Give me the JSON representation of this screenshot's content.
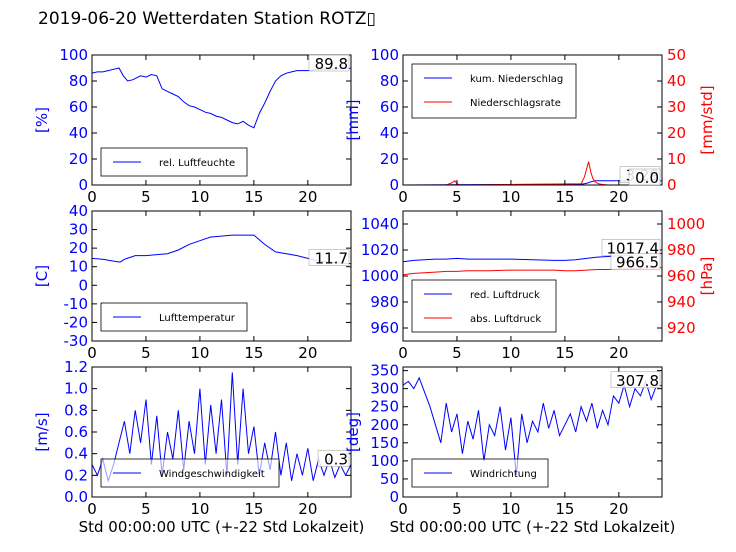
{
  "title": "2019-06-20 Wetterdaten Station ROTZ",
  "title_suffix": "▯",
  "colors": {
    "left": "#0000ff",
    "right": "#ff0000",
    "text": "#000000",
    "box_edge": "#000000"
  },
  "x_axis": {
    "ticks": [
      0,
      5,
      10,
      15,
      20
    ],
    "lim": [
      0,
      24
    ],
    "label": "Std 00:00:00 UTC (+-22 Std Lokalzeit)"
  },
  "chart_data": [
    {
      "type": "line",
      "id": "humidity",
      "ylabel": "[%]",
      "ylim": [
        0,
        100
      ],
      "yticks": [
        0,
        20,
        40,
        60,
        80,
        100
      ],
      "last_value": "89.8",
      "legend": [
        "rel. Luftfeuchte"
      ],
      "series": [
        {
          "name": "rel. Luftfeuchte",
          "color": "#0000ff",
          "x": [
            0,
            0.5,
            1,
            1.5,
            2,
            2.5,
            2.9,
            3.3,
            3.8,
            4.5,
            5,
            5.5,
            6,
            6.5,
            7,
            7.5,
            8,
            8.5,
            9,
            9.5,
            10,
            10.5,
            11,
            11.5,
            12,
            12.5,
            13,
            13.5,
            14,
            14.5,
            15,
            15.5,
            16,
            16.5,
            17,
            17.5,
            18,
            18.5,
            19,
            20,
            21,
            22,
            23,
            24
          ],
          "y": [
            86,
            87,
            87,
            88,
            89,
            90,
            84,
            80,
            81,
            84,
            83,
            85,
            84,
            74,
            72,
            70,
            68,
            64,
            61,
            60,
            58,
            56,
            55,
            53,
            52,
            50,
            48,
            47,
            49,
            46,
            44,
            55,
            63,
            72,
            80,
            84,
            86,
            87,
            88,
            88,
            89,
            89,
            89.5,
            89.8
          ]
        }
      ]
    },
    {
      "type": "line",
      "id": "precipitation",
      "ylabel": "[mm]",
      "ylim": [
        0,
        100
      ],
      "yticks": [
        0,
        20,
        40,
        60,
        80,
        100
      ],
      "ylabel_right": "[mm/std]",
      "ylim_right": [
        0,
        50
      ],
      "yticks_right": [
        0,
        10,
        20,
        30,
        40,
        50
      ],
      "last_values": [
        "3.29",
        "0.0"
      ],
      "legend": [
        "kum. Niederschlag",
        "Niederschlagsrate"
      ],
      "series": [
        {
          "name": "kum. Niederschlag",
          "color": "#0000ff",
          "axis": "left",
          "x": [
            0,
            4,
            16.5,
            17,
            17.4,
            17.8,
            18.5,
            20,
            22,
            24
          ],
          "y": [
            0,
            0.2,
            0.5,
            1.2,
            2.5,
            3.2,
            3.29,
            3.29,
            3.29,
            3.29
          ]
        },
        {
          "name": "Niederschlagsrate",
          "color": "#ff0000",
          "axis": "right",
          "x": [
            0,
            4,
            4.5,
            4.8,
            5,
            5.3,
            6,
            16.5,
            16.8,
            17,
            17.2,
            17.4,
            17.6,
            17.8,
            18.1,
            18.5,
            19,
            24
          ],
          "y": [
            0,
            0,
            0.8,
            1.6,
            0.5,
            0,
            0,
            0.5,
            3,
            6,
            9,
            5,
            2.5,
            1.2,
            0.5,
            0.2,
            0,
            0
          ]
        }
      ]
    },
    {
      "type": "line",
      "id": "temperature",
      "ylabel": "[C]",
      "ylim": [
        -30,
        40
      ],
      "yticks": [
        -30,
        -20,
        -10,
        0,
        10,
        20,
        30,
        40
      ],
      "last_value": "11.7",
      "legend": [
        "Lufttemperatur"
      ],
      "series": [
        {
          "name": "Lufttemperatur",
          "color": "#0000ff",
          "x": [
            0,
            1,
            2,
            2.6,
            3,
            4,
            5,
            6,
            7,
            8,
            9,
            10,
            11,
            12,
            13,
            14,
            15,
            16,
            17,
            18,
            19,
            20,
            21,
            22,
            23,
            24
          ],
          "y": [
            14.5,
            14,
            13,
            12.5,
            14,
            16,
            16,
            16.5,
            17,
            19,
            22,
            24,
            26,
            26.5,
            27,
            27,
            27,
            22,
            18,
            17,
            16,
            14.5,
            13,
            12.5,
            12,
            11.7
          ]
        }
      ]
    },
    {
      "type": "line",
      "id": "pressure",
      "ylim": [
        950,
        1050
      ],
      "yticks": [
        960,
        980,
        1000,
        1020,
        1040
      ],
      "ylabel_right": "[hPa]",
      "ylim_right": [
        910,
        1010
      ],
      "yticks_right": [
        920,
        940,
        960,
        980,
        1000
      ],
      "last_values": [
        "1017.4",
        "966.5"
      ],
      "legend": [
        "red. Luftdruck",
        "abs. Luftdruck"
      ],
      "series": [
        {
          "name": "red. Luftdruck",
          "color": "#0000ff",
          "axis": "left",
          "x": [
            0,
            1,
            2,
            3,
            4,
            5,
            6,
            8,
            10,
            12,
            14,
            15,
            16,
            17,
            18,
            19,
            20,
            21,
            22,
            23,
            24
          ],
          "y": [
            1011,
            1012,
            1012.5,
            1013,
            1013,
            1013.5,
            1013,
            1013,
            1013,
            1012.5,
            1012,
            1012,
            1012.5,
            1013.5,
            1014.5,
            1015,
            1015.5,
            1016,
            1016.5,
            1017,
            1017.4
          ]
        },
        {
          "name": "abs. Luftdruck",
          "color": "#ff0000",
          "axis": "right",
          "x": [
            0,
            1,
            2,
            3,
            4,
            5,
            6,
            8,
            10,
            12,
            14,
            15,
            16,
            17,
            18,
            19,
            20,
            21,
            22,
            23,
            24
          ],
          "y": [
            961,
            962,
            962.5,
            963,
            963.5,
            963.5,
            964,
            964,
            964.5,
            964.5,
            964.5,
            964,
            964,
            964.5,
            965,
            965,
            965.5,
            966,
            966,
            966.5,
            966.5
          ]
        }
      ]
    },
    {
      "type": "line",
      "id": "wind_speed",
      "ylabel": "[m/s]",
      "ylim": [
        0,
        1.2
      ],
      "yticks": [
        0.0,
        0.2,
        0.4,
        0.6,
        0.8,
        1.0,
        1.2
      ],
      "last_value": "0.3",
      "legend": [
        "Windgeschwindigkeit"
      ],
      "series": [
        {
          "name": "Windgeschwindigkeit",
          "color": "#0000ff",
          "x": [
            0,
            0.5,
            1,
            1.5,
            2,
            2.5,
            3,
            3.5,
            4,
            4.5,
            5,
            5.5,
            6,
            6.5,
            7,
            7.5,
            8,
            8.5,
            9,
            9.5,
            10,
            10.5,
            11,
            11.5,
            12,
            12.5,
            13,
            13.5,
            14,
            14.5,
            15,
            15.5,
            16,
            16.5,
            17,
            17.5,
            18,
            18.5,
            19,
            19.5,
            20,
            20.5,
            21,
            21.5,
            22,
            22.5,
            23,
            23.5,
            24
          ],
          "y": [
            0.3,
            0.2,
            0.35,
            0.15,
            0.3,
            0.5,
            0.7,
            0.4,
            0.8,
            0.5,
            0.9,
            0.3,
            0.75,
            0.2,
            0.6,
            0.35,
            0.8,
            0.25,
            0.7,
            0.4,
            1.0,
            0.3,
            0.85,
            0.4,
            0.9,
            0.2,
            1.15,
            0.3,
            1.0,
            0.4,
            0.65,
            0.2,
            0.5,
            0.25,
            0.6,
            0.2,
            0.5,
            0.15,
            0.4,
            0.2,
            0.45,
            0.15,
            0.35,
            0.2,
            0.35,
            0.18,
            0.3,
            0.2,
            0.3
          ]
        }
      ]
    },
    {
      "type": "line",
      "id": "wind_direction",
      "ylabel": "[deg]",
      "ylim": [
        0,
        360
      ],
      "yticks": [
        0,
        50,
        100,
        150,
        200,
        250,
        300,
        350
      ],
      "last_value": "307.8",
      "legend": [
        "Windrichtung"
      ],
      "series": [
        {
          "name": "Windrichtung",
          "color": "#0000ff",
          "x": [
            0,
            0.5,
            1,
            1.5,
            2,
            2.5,
            3,
            3.5,
            4,
            4.5,
            5,
            5.5,
            6,
            6.5,
            7,
            7.5,
            8,
            8.5,
            9,
            9.5,
            10,
            10.5,
            11,
            11.5,
            12,
            12.5,
            13,
            13.5,
            14,
            14.5,
            15,
            15.5,
            16,
            16.5,
            17,
            17.5,
            18,
            18.5,
            19,
            19.5,
            20,
            20.5,
            21,
            21.5,
            22,
            22.5,
            23,
            23.5,
            24
          ],
          "y": [
            310,
            320,
            300,
            330,
            290,
            250,
            200,
            150,
            260,
            180,
            230,
            120,
            210,
            160,
            240,
            100,
            200,
            170,
            250,
            130,
            220,
            60,
            230,
            150,
            210,
            180,
            260,
            190,
            240,
            170,
            200,
            230,
            180,
            250,
            210,
            260,
            190,
            240,
            200,
            280,
            260,
            310,
            250,
            300,
            280,
            320,
            270,
            310,
            308
          ]
        }
      ]
    }
  ]
}
